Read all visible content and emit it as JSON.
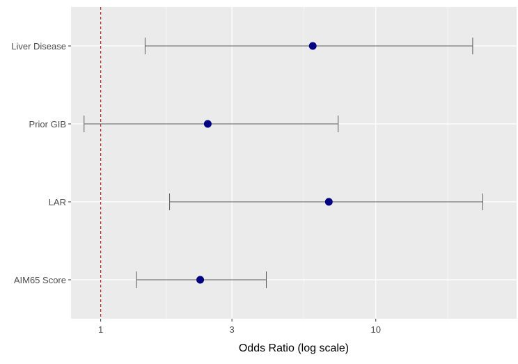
{
  "chart_data": {
    "type": "forest",
    "xlabel": "Odds Ratio (log scale)",
    "x_scale": "log",
    "xlim": [
      0.78,
      32.5
    ],
    "x_ticks": [
      1,
      3,
      10
    ],
    "x_tick_labels": [
      "1",
      "3",
      "10"
    ],
    "reference_line": 1,
    "grid": true,
    "rows": [
      {
        "label": "Liver Disease",
        "or": 5.9,
        "lo": 1.45,
        "hi": 22.5
      },
      {
        "label": "Prior GIB",
        "or": 2.45,
        "lo": 0.87,
        "hi": 7.3
      },
      {
        "label": "LAR",
        "or": 6.75,
        "lo": 1.78,
        "hi": 24.5
      },
      {
        "label": "AIM65 Score",
        "or": 2.3,
        "lo": 1.35,
        "hi": 4.0
      }
    ]
  },
  "colors": {
    "panel": "#ebebeb",
    "grid": "#ffffff",
    "point": "#000080",
    "errorbar": "#595959",
    "reference": "#b22222"
  }
}
